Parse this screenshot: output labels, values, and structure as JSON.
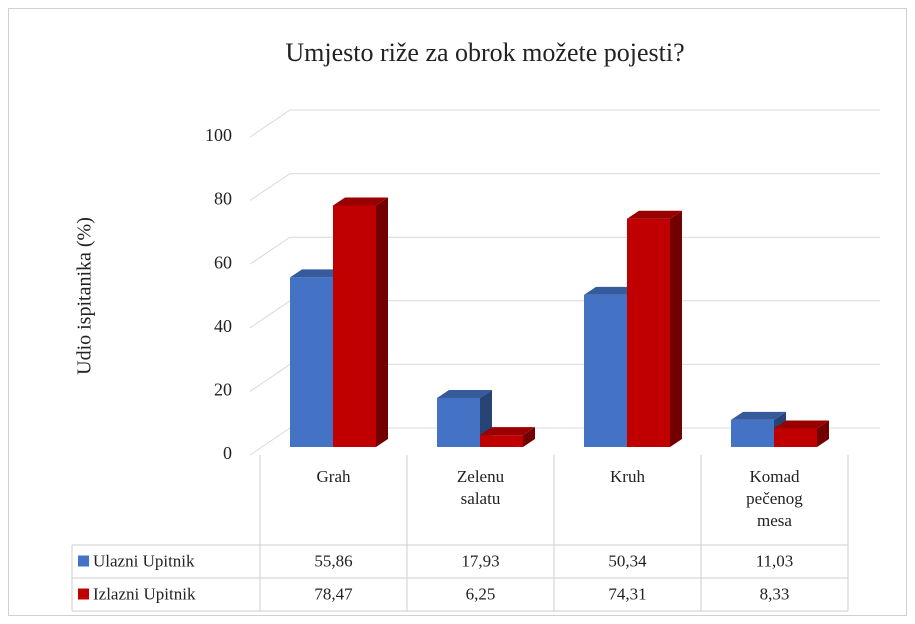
{
  "chart_data": {
    "type": "bar3d",
    "title": "Umjesto riže za obrok možete pojesti?",
    "y_label": "Udio ispitanika (%)",
    "categories": [
      "Grah",
      "Zelenu salatu",
      "Kruh",
      "Komad pečenog mesa"
    ],
    "series": [
      {
        "name": "Ulazni Upitnik",
        "color": "#4472c4",
        "values": [
          55.86,
          17.93,
          50.34,
          11.03
        ],
        "value_labels": [
          "55,86",
          "17,93",
          "50,34",
          "11,03"
        ]
      },
      {
        "name": "Izlazni Upitnik",
        "color": "#c00000",
        "values": [
          78.47,
          6.25,
          74.31,
          8.33
        ],
        "value_labels": [
          "78,47",
          "6,25",
          "74,31",
          "8,33"
        ]
      }
    ],
    "ylim": [
      0,
      100
    ],
    "yticks": [
      0,
      20,
      40,
      60,
      80,
      100
    ],
    "grid": true,
    "data_table": true
  }
}
